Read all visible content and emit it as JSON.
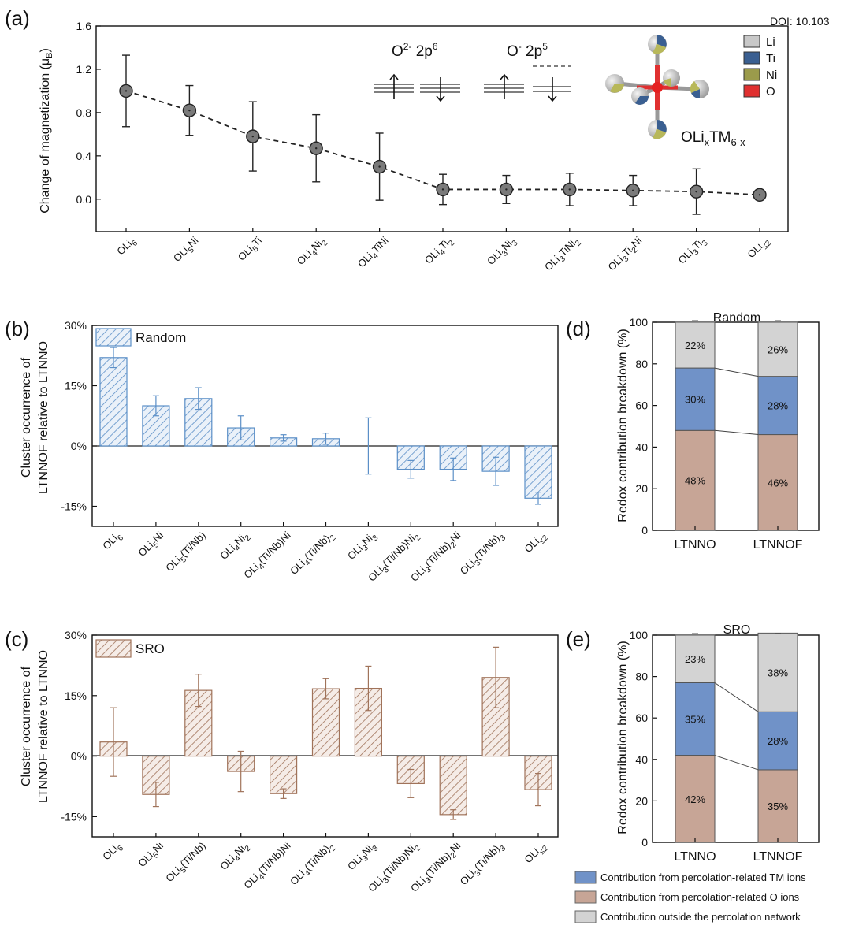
{
  "doi": "DOI: 10.103",
  "panel_labels": [
    "(a)",
    "(b)",
    "(c)",
    "(d)",
    "(e)"
  ],
  "colors": {
    "random": "#5b8fc7",
    "sro": "#a0735a",
    "tm": "#7092c8",
    "o": "#c7a596",
    "outside": "#d3d3d3"
  },
  "chart_data": [
    {
      "panel": "(a)",
      "type": "line",
      "ylabel": "Change of magnetization (μB)",
      "ylim": [
        -0.3,
        1.6
      ],
      "yticks": [
        0.0,
        0.4,
        0.8,
        1.2,
        1.6
      ],
      "ytick_labels": [
        "0.0",
        "0.4",
        "0.8",
        "1.2",
        "1.6"
      ],
      "categories": [
        "OLi6",
        "OLi5Ni",
        "OLi5Ti",
        "OLi4Ni2",
        "OLi4TiNi",
        "OLi4Ti2",
        "OLi3Ni3",
        "OLi3TiNi2",
        "OLi3Ti2Ni",
        "OLi3Ti3",
        "OLi≤2"
      ],
      "values": [
        1.0,
        0.82,
        0.58,
        0.47,
        0.3,
        0.09,
        0.09,
        0.09,
        0.08,
        0.07,
        0.04
      ],
      "errors": [
        0.33,
        0.23,
        0.32,
        0.31,
        0.31,
        0.14,
        0.13,
        0.15,
        0.14,
        0.21,
        0.03
      ],
      "annotations": {
        "o2": "O2- 2p6",
        "o1": "O- 2p5",
        "formula": "OLixTM6-x"
      },
      "legend": [
        "Li",
        "Ti",
        "Ni",
        "O"
      ],
      "legend_colors": [
        "#c8c8c8",
        "#3a5f91",
        "#9b9b4b",
        "#e03030"
      ]
    },
    {
      "panel": "(b)",
      "type": "bar",
      "ylabel": "Cluster occurrence of LTNNOF relative to LTNNO",
      "legend": "Random",
      "ylim": [
        -20,
        30
      ],
      "yticks": [
        -15,
        0,
        15,
        30
      ],
      "ytick_labels": [
        "-15%",
        "0%",
        "15%",
        "30%"
      ],
      "categories": [
        "OLi6",
        "OLi5Ni",
        "OLi5(Ti/Nb)",
        "OLi4Ni2",
        "OLi4(Ti/Nb)Ni",
        "OLi4(Ti/Nb)2",
        "OLi3Ni3",
        "OLi3(Ti/Nb)Ni2",
        "OLi3(Ti/Nb)2Ni",
        "OLi3(Ti/Nb)3",
        "OLi≤2"
      ],
      "values": [
        22,
        10,
        11.8,
        4.5,
        2,
        1.8,
        0,
        -5.8,
        -5.8,
        -6.3,
        -13
      ],
      "errors": [
        2.5,
        2.5,
        2.7,
        3,
        0.8,
        1.4,
        7,
        2.2,
        2.8,
        3.5,
        1.5
      ]
    },
    {
      "panel": "(c)",
      "type": "bar",
      "ylabel": "Cluster occurrence of LTNNOF relative to LTNNO",
      "legend": "SRO",
      "ylim": [
        -20,
        30
      ],
      "yticks": [
        -15,
        0,
        15,
        30
      ],
      "ytick_labels": [
        "-15%",
        "0%",
        "15%",
        "30%"
      ],
      "categories": [
        "OLi6",
        "OLi5Ni",
        "OLi5(Ti/Nb)",
        "OLi4Ni2",
        "OLi4(Ti/Nb)Ni",
        "OLi4(Ti/Nb)2",
        "OLi3Ni3",
        "OLi3(Ti/Nb)Ni2",
        "OLi3(Ti/Nb)2Ni",
        "OLi3(Ti/Nb)3",
        "OLi≤2"
      ],
      "values": [
        3.5,
        -9.5,
        16.3,
        -3.8,
        -9.3,
        16.7,
        16.8,
        -6.8,
        -14.5,
        19.5,
        -8.3
      ],
      "errors": [
        8.5,
        3,
        4,
        5,
        1.2,
        2.5,
        5.5,
        3.5,
        1.2,
        7.5,
        4
      ]
    },
    {
      "panel": "(d)",
      "type": "stacked-bar",
      "title": "Random",
      "ylabel": "Redox contribution breakdown (%)",
      "ylim": [
        0,
        100
      ],
      "yticks": [
        0,
        20,
        40,
        60,
        80,
        100
      ],
      "ytick_labels": [
        "0",
        "20",
        "40",
        "60",
        "80",
        "100"
      ],
      "categories": [
        "LTNNO",
        "LTNNOF"
      ],
      "series": [
        {
          "name": "Contribution from percolation-related O ions",
          "values": [
            48,
            46
          ],
          "labels": [
            "48%",
            "46%"
          ]
        },
        {
          "name": "Contribution from percolation-related TM ions",
          "values": [
            30,
            28
          ],
          "labels": [
            "30%",
            "28%"
          ]
        },
        {
          "name": "Contribution outside the percolation network",
          "values": [
            22,
            26
          ],
          "labels": [
            "22%",
            "26%"
          ]
        }
      ]
    },
    {
      "panel": "(e)",
      "type": "stacked-bar",
      "title": "SRO",
      "ylabel": "Redox contribution breakdown (%)",
      "ylim": [
        0,
        100
      ],
      "yticks": [
        0,
        20,
        40,
        60,
        80,
        100
      ],
      "ytick_labels": [
        "0",
        "20",
        "40",
        "60",
        "80",
        "100"
      ],
      "categories": [
        "LTNNO",
        "LTNNOF"
      ],
      "series": [
        {
          "name": "Contribution from percolation-related O ions",
          "values": [
            42,
            35
          ],
          "labels": [
            "42%",
            "35%"
          ]
        },
        {
          "name": "Contribution from percolation-related TM ions",
          "values": [
            35,
            28
          ],
          "labels": [
            "35%",
            "28%"
          ]
        },
        {
          "name": "Contribution outside the percolation network",
          "values": [
            23,
            38
          ],
          "labels": [
            "23%",
            "38%"
          ]
        }
      ]
    }
  ],
  "bottom_legend": [
    "Contribution from percolation-related TM ions",
    "Contribution from percolation-related O ions",
    "Contribution outside the percolation network"
  ]
}
